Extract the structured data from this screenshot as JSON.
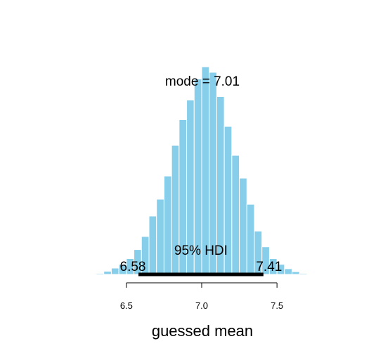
{
  "chart_data": {
    "type": "bar",
    "title": "",
    "xlabel": "guessed mean",
    "ylabel": "",
    "xlim": [
      6.3,
      7.7
    ],
    "ylim": [
      0,
      1
    ],
    "x_ticks": [
      6.5,
      7.0,
      7.5
    ],
    "x_tick_labels": [
      "6.5",
      "7.0",
      "7.5"
    ],
    "bin_width": 0.05,
    "bin_starts": [
      6.3,
      6.35,
      6.4,
      6.45,
      6.5,
      6.55,
      6.6,
      6.65,
      6.7,
      6.75,
      6.8,
      6.85,
      6.9,
      6.95,
      7.0,
      7.05,
      7.1,
      7.15,
      7.2,
      7.25,
      7.3,
      7.35,
      7.4,
      7.45,
      7.5,
      7.55,
      7.6,
      7.65
    ],
    "values": [
      0.005,
      0.015,
      0.03,
      0.048,
      0.075,
      0.118,
      0.18,
      0.277,
      0.357,
      0.467,
      0.613,
      0.735,
      0.828,
      0.928,
      0.986,
      0.96,
      0.845,
      0.703,
      0.566,
      0.457,
      0.333,
      0.206,
      0.131,
      0.075,
      0.048,
      0.027,
      0.013,
      0.005
    ],
    "bar_color": "#87ceeb",
    "mode_label": "mode = 7.01",
    "hdi": {
      "label": "95% HDI",
      "low": 6.58,
      "high": 7.41,
      "low_label": "6.58",
      "high_label": "7.41"
    },
    "grid": false,
    "legend": "none"
  }
}
